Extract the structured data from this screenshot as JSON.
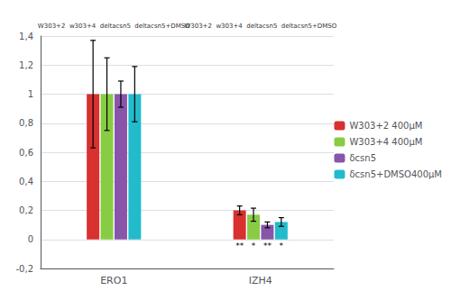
{
  "chart_data": {
    "type": "bar",
    "categories": [
      "ERO1",
      "IZH4"
    ],
    "series": [
      {
        "name": "W303+2 400μM",
        "color": "#d93030",
        "values": [
          1.0,
          0.2
        ],
        "errors": [
          0.37,
          0.03
        ]
      },
      {
        "name": "W303+4 400μM",
        "color": "#88cc44",
        "values": [
          1.0,
          0.17
        ],
        "errors": [
          0.25,
          0.045
        ]
      },
      {
        "name": "δcsn5",
        "color": "#8855aa",
        "values": [
          1.0,
          0.1
        ],
        "errors": [
          0.09,
          0.02
        ]
      },
      {
        "name": "δcsn5+DMSO400μM",
        "color": "#22bbcc",
        "values": [
          1.0,
          0.12
        ],
        "errors": [
          0.19,
          0.03
        ]
      }
    ],
    "ylim": [
      -0.2,
      1.4
    ],
    "yticks": [
      {
        "value": -0.2,
        "label": "-0,2"
      },
      0,
      {
        "value": 0.2,
        "label": "0,2"
      },
      {
        "value": 0.4,
        "label": "0,4"
      },
      {
        "value": 0.6,
        "label": "0,6"
      },
      {
        "value": 0.8,
        "label": "0,8"
      },
      1,
      {
        "value": 1.2,
        "label": "1,2"
      },
      {
        "value": 1.4,
        "label": "1,4"
      }
    ],
    "grid": true,
    "legend": "right",
    "annotations": [
      {
        "text": "W303+2  w303+4  deltacsn5  deltacsn5+DMSO",
        "category": "ERO1"
      },
      {
        "text": "W303+2  w303+4  deltacsn5  deltacsn5+DMSO",
        "category": "IZH4"
      },
      {
        "text": "**",
        "category": "IZH4",
        "series": "W303+2 400μM"
      },
      {
        "text": "*",
        "category": "IZH4",
        "series": "W303+4 400μM"
      },
      {
        "text": "**",
        "category": "IZH4",
        "series": "δcsn5"
      },
      {
        "text": "*",
        "category": "IZH4",
        "series": "δcsn5+DMSO400μM"
      }
    ]
  }
}
